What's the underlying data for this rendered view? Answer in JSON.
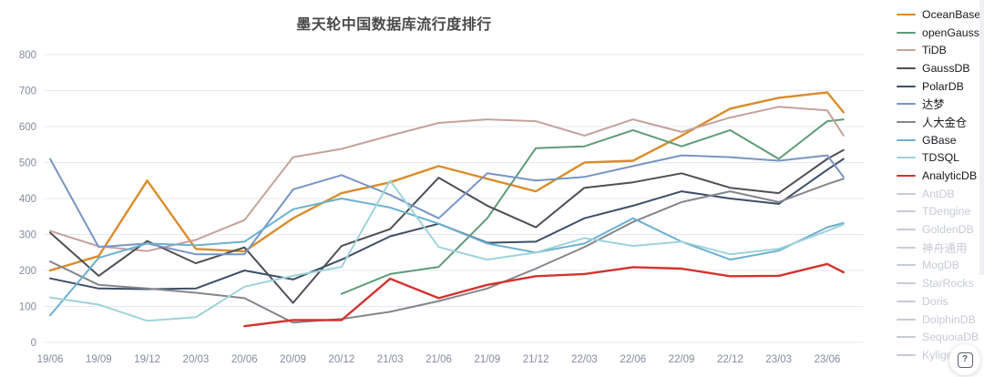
{
  "title": "墨天轮中国数据库流行度排行",
  "help_label": "?",
  "chart_data": {
    "type": "line",
    "title": "墨天轮中国数据库流行度排行",
    "xlabel": "",
    "ylabel": "",
    "ylim": [
      0,
      800
    ],
    "y_ticks": [
      0,
      100,
      200,
      300,
      400,
      500,
      600,
      700,
      800
    ],
    "grid": "horizontal-only",
    "grid_color": "#e4e9f2",
    "axis_text_color": "#858b9c",
    "legend_position": "right",
    "legend_disabled_color": "#c7cbd4",
    "x_tick_labels": [
      "19/06",
      "19/09",
      "19/12",
      "20/03",
      "20/06",
      "20/09",
      "20/12",
      "21/03",
      "21/06",
      "21/09",
      "21/12",
      "22/03",
      "22/06",
      "22/09",
      "22/12",
      "23/03",
      "23/06"
    ],
    "x_points": [
      "19/06",
      "19/09",
      "19/12",
      "20/03",
      "20/06",
      "20/09",
      "20/12",
      "21/03",
      "21/06",
      "21/09",
      "21/12",
      "22/03",
      "22/06",
      "22/09",
      "22/12",
      "23/03",
      "23/06",
      "23/07"
    ],
    "series": [
      {
        "name": "OceanBase",
        "color": "#d98d2b",
        "line_width": 2.4,
        "enabled": true,
        "values": [
          200,
          240,
          450,
          260,
          253,
          345,
          415,
          445,
          490,
          455,
          420,
          500,
          505,
          575,
          650,
          680,
          695,
          640
        ]
      },
      {
        "name": "openGauss",
        "color": "#5f9b77",
        "line_width": 2,
        "enabled": true,
        "values": [
          null,
          null,
          null,
          null,
          null,
          null,
          135,
          190,
          210,
          345,
          540,
          545,
          590,
          545,
          590,
          510,
          615,
          620
        ]
      },
      {
        "name": "TiDB",
        "color": "#c4a29a",
        "line_width": 2,
        "enabled": true,
        "values": [
          310,
          267,
          254,
          285,
          340,
          515,
          538,
          575,
          610,
          620,
          615,
          575,
          620,
          585,
          625,
          655,
          645,
          575
        ]
      },
      {
        "name": "GaussDB",
        "color": "#4e4f55",
        "line_width": 2,
        "enabled": true,
        "values": [
          305,
          185,
          282,
          220,
          264,
          110,
          268,
          315,
          458,
          380,
          320,
          430,
          445,
          470,
          430,
          415,
          510,
          535
        ]
      },
      {
        "name": "PolarDB",
        "color": "#3d4e68",
        "line_width": 2,
        "enabled": true,
        "values": [
          178,
          150,
          148,
          150,
          200,
          175,
          230,
          295,
          330,
          277,
          280,
          345,
          380,
          420,
          400,
          385,
          480,
          510
        ]
      },
      {
        "name": "达梦",
        "color": "#7795c4",
        "line_width": 2,
        "enabled": true,
        "values": [
          510,
          265,
          275,
          245,
          245,
          425,
          465,
          410,
          345,
          470,
          450,
          460,
          490,
          520,
          515,
          505,
          520,
          460
        ]
      },
      {
        "name": "人大金仓",
        "color": "#85868b",
        "line_width": 2,
        "enabled": true,
        "values": [
          225,
          160,
          150,
          138,
          123,
          55,
          65,
          85,
          115,
          150,
          205,
          265,
          335,
          390,
          420,
          390,
          440,
          455
        ]
      },
      {
        "name": "GBase",
        "color": "#6cb0cf",
        "line_width": 2,
        "enabled": true,
        "values": [
          75,
          235,
          275,
          270,
          280,
          370,
          400,
          375,
          330,
          275,
          250,
          275,
          345,
          280,
          230,
          255,
          320,
          332
        ]
      },
      {
        "name": "TDSQL",
        "color": "#9fd3da",
        "line_width": 2,
        "enabled": true,
        "values": [
          125,
          105,
          60,
          70,
          155,
          185,
          210,
          450,
          265,
          230,
          250,
          290,
          268,
          280,
          245,
          260,
          310,
          328
        ]
      },
      {
        "name": "AnalyticDB",
        "color": "#d23430",
        "line_width": 2.4,
        "enabled": true,
        "values": [
          null,
          null,
          null,
          null,
          45,
          62,
          62,
          177,
          123,
          160,
          184,
          190,
          209,
          205,
          184,
          185,
          218,
          195
        ]
      },
      {
        "name": "AntDB",
        "color": "#c7cbd4",
        "line_width": 2,
        "enabled": false,
        "values": []
      },
      {
        "name": "TDengine",
        "color": "#c7cbd4",
        "line_width": 2,
        "enabled": false,
        "values": []
      },
      {
        "name": "GoldenDB",
        "color": "#c7cbd4",
        "line_width": 2,
        "enabled": false,
        "values": []
      },
      {
        "name": "神舟通用",
        "color": "#c7cbd4",
        "line_width": 2,
        "enabled": false,
        "values": []
      },
      {
        "name": "MogDB",
        "color": "#c7cbd4",
        "line_width": 2,
        "enabled": false,
        "values": []
      },
      {
        "name": "StarRocks",
        "color": "#c7cbd4",
        "line_width": 2,
        "enabled": false,
        "values": []
      },
      {
        "name": "Doris",
        "color": "#c7cbd4",
        "line_width": 2,
        "enabled": false,
        "values": []
      },
      {
        "name": "DolphinDB",
        "color": "#c7cbd4",
        "line_width": 2,
        "enabled": false,
        "values": []
      },
      {
        "name": "SequoiaDB",
        "color": "#c7cbd4",
        "line_width": 2,
        "enabled": false,
        "values": []
      },
      {
        "name": "Kyligence",
        "color": "#c7cbd4",
        "line_width": 2,
        "enabled": false,
        "values": []
      }
    ]
  }
}
